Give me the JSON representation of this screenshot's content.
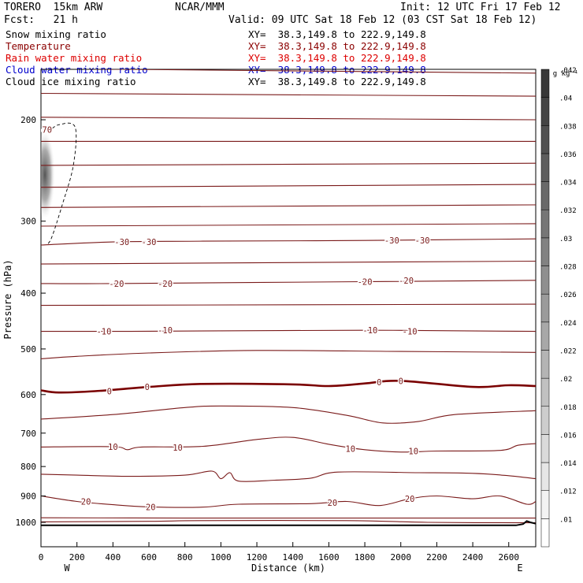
{
  "header": {
    "model": "TORERO  15km ARW",
    "center": "NCAR/MMM",
    "init": "Init: 12 UTC Fri 17 Feb 12",
    "fcst": "Fcst:   21 h",
    "valid": "Valid: 09 UTC Sat 18 Feb 12 (03 CST Sat 18 Feb 12)"
  },
  "fields": [
    {
      "name": "Snow mixing ratio",
      "color": "#000000",
      "xy": "XY=  38.3,149.8 to 222.9,149.8"
    },
    {
      "name": "Temperature",
      "color": "#8b0000",
      "xy": "XY=  38.3,149.8 to 222.9,149.8"
    },
    {
      "name": "Rain water mixing ratio",
      "color": "#dd0000",
      "xy": "XY=  38.3,149.8 to 222.9,149.8"
    },
    {
      "name": "Cloud water mixing ratio",
      "color": "#0000cc",
      "xy": "XY=  38.3,149.8 to 222.9,149.8"
    },
    {
      "name": "Cloud ice mixing ratio",
      "color": "#000000",
      "xy": "XY=  38.3,149.8 to 222.9,149.8"
    }
  ],
  "colors": {
    "isotherm": "#7a1a1a",
    "zero_isotherm": "#7a0000",
    "terrain": "#000000",
    "snow_shading": "#555555"
  },
  "chart_data": {
    "type": "contour",
    "x_axis": {
      "label": "Distance (km)",
      "range": [
        0,
        2750
      ],
      "ticks": [
        0,
        200,
        400,
        600,
        800,
        1000,
        1200,
        1400,
        1600,
        1800,
        2000,
        2200,
        2400,
        2600
      ],
      "left_end_label": "W",
      "right_end_label": "E"
    },
    "y_axis": {
      "label": "Pressure (hPa)",
      "range": [
        1050,
        100
      ],
      "ticks": [
        200,
        300,
        400,
        500,
        600,
        700,
        800,
        900,
        1000
      ],
      "scale": "log"
    },
    "colorbar": {
      "units": "g kg⁻¹",
      "ticks": [
        ".01",
        ".012",
        ".014",
        ".016",
        ".018",
        ".02",
        ".022",
        ".024",
        ".026",
        ".028",
        ".03",
        ".032",
        ".034",
        ".036",
        ".038",
        ".04",
        ".042"
      ]
    },
    "isotherm_labels": [
      {
        "text": "-70",
        "x": 20,
        "p": 208
      },
      {
        "text": "-30",
        "x": 450,
        "p": 326
      },
      {
        "text": "-30",
        "x": 600,
        "p": 326
      },
      {
        "text": "-30",
        "x": 1950,
        "p": 324
      },
      {
        "text": "-30",
        "x": 2120,
        "p": 324
      },
      {
        "text": "-20",
        "x": 420,
        "p": 385
      },
      {
        "text": "-20",
        "x": 690,
        "p": 385
      },
      {
        "text": "-20",
        "x": 1800,
        "p": 382
      },
      {
        "text": "-20",
        "x": 2030,
        "p": 380
      },
      {
        "text": "-10",
        "x": 350,
        "p": 466
      },
      {
        "text": "-10",
        "x": 690,
        "p": 464
      },
      {
        "text": "-10",
        "x": 1830,
        "p": 464
      },
      {
        "text": "-10",
        "x": 2050,
        "p": 466
      },
      {
        "text": "0",
        "x": 380,
        "p": 592
      },
      {
        "text": "0",
        "x": 590,
        "p": 582
      },
      {
        "text": "0",
        "x": 1880,
        "p": 571
      },
      {
        "text": "0",
        "x": 2000,
        "p": 568
      },
      {
        "text": "10",
        "x": 400,
        "p": 739
      },
      {
        "text": "10",
        "x": 760,
        "p": 741
      },
      {
        "text": "10",
        "x": 1720,
        "p": 745
      },
      {
        "text": "10",
        "x": 2070,
        "p": 752
      },
      {
        "text": "20",
        "x": 250,
        "p": 920
      },
      {
        "text": "20",
        "x": 610,
        "p": 940
      },
      {
        "text": "20",
        "x": 1620,
        "p": 925
      },
      {
        "text": "20",
        "x": 2050,
        "p": 910
      }
    ],
    "isotherms": [
      [
        [
          0,
          120
        ],
        [
          2750,
          125
        ]
      ],
      [
        [
          0,
          133
        ],
        [
          2750,
          136
        ]
      ],
      [
        [
          0,
          147
        ],
        [
          2750,
          150
        ]
      ],
      [
        [
          0,
          163
        ],
        [
          2750,
          166
        ]
      ],
      [
        [
          0,
          180
        ],
        [
          2750,
          182
        ]
      ],
      [
        [
          0,
          198
        ],
        [
          2750,
          200
        ]
      ],
      [
        [
          0,
          218
        ],
        [
          2750,
          218
        ]
      ],
      [
        [
          0,
          240
        ],
        [
          2750,
          238
        ]
      ],
      [
        [
          0,
          262
        ],
        [
          2750,
          259
        ]
      ],
      [
        [
          0,
          284
        ],
        [
          2750,
          281
        ]
      ],
      [
        [
          0,
          306
        ],
        [
          2750,
          303
        ]
      ],
      [
        [
          0,
          330
        ],
        [
          400,
          326
        ],
        [
          900,
          325
        ],
        [
          1800,
          324
        ],
        [
          2750,
          322
        ]
      ],
      [
        [
          0,
          356
        ],
        [
          2750,
          352
        ]
      ],
      [
        [
          0,
          385
        ],
        [
          400,
          385
        ],
        [
          1800,
          382
        ],
        [
          2750,
          380
        ]
      ],
      [
        [
          0,
          420
        ],
        [
          2750,
          418
        ]
      ],
      [
        [
          0,
          466
        ],
        [
          500,
          466
        ],
        [
          1800,
          464
        ],
        [
          2750,
          466
        ]
      ],
      [
        [
          0,
          520
        ],
        [
          200,
          515
        ],
        [
          600,
          508
        ],
        [
          1200,
          503
        ],
        [
          2000,
          505
        ],
        [
          2750,
          507
        ]
      ],
      [
        [
          0,
          590
        ],
        [
          100,
          595
        ],
        [
          300,
          592
        ],
        [
          600,
          582
        ],
        [
          900,
          575
        ],
        [
          1400,
          576
        ],
        [
          1600,
          580
        ],
        [
          1800,
          574
        ],
        [
          2000,
          568
        ],
        [
          2400,
          582
        ],
        [
          2600,
          578
        ],
        [
          2750,
          580
        ]
      ],
      [
        [
          0,
          662
        ],
        [
          400,
          650
        ],
        [
          800,
          632
        ],
        [
          1000,
          628
        ],
        [
          1400,
          632
        ],
        [
          1700,
          652
        ],
        [
          1900,
          672
        ],
        [
          2100,
          668
        ],
        [
          2300,
          650
        ],
        [
          2750,
          640
        ]
      ],
      [
        [
          0,
          740
        ],
        [
          400,
          739
        ],
        [
          480,
          748
        ],
        [
          560,
          740
        ],
        [
          900,
          738
        ],
        [
          1200,
          718
        ],
        [
          1400,
          712
        ],
        [
          1600,
          732
        ],
        [
          1800,
          748
        ],
        [
          2000,
          755
        ],
        [
          2200,
          752
        ],
        [
          2550,
          750
        ],
        [
          2650,
          735
        ],
        [
          2750,
          730
        ]
      ],
      [
        [
          0,
          825
        ],
        [
          200,
          828
        ],
        [
          500,
          832
        ],
        [
          800,
          828
        ],
        [
          950,
          815
        ],
        [
          1000,
          840
        ],
        [
          1050,
          820
        ],
        [
          1100,
          848
        ],
        [
          1300,
          845
        ],
        [
          1500,
          838
        ],
        [
          1650,
          818
        ],
        [
          2100,
          820
        ],
        [
          2400,
          822
        ],
        [
          2600,
          830
        ],
        [
          2750,
          840
        ]
      ],
      [
        [
          0,
          900
        ],
        [
          200,
          920
        ],
        [
          400,
          932
        ],
        [
          600,
          940
        ],
        [
          900,
          941
        ],
        [
          1100,
          930
        ],
        [
          1500,
          928
        ],
        [
          1700,
          920
        ],
        [
          1880,
          935
        ],
        [
          2050,
          910
        ],
        [
          2200,
          900
        ],
        [
          2400,
          910
        ],
        [
          2550,
          900
        ],
        [
          2700,
          930
        ],
        [
          2750,
          920
        ]
      ],
      [
        [
          0,
          982
        ],
        [
          800,
          983
        ],
        [
          1600,
          983
        ],
        [
          2750,
          983
        ]
      ],
      [
        [
          0,
          998
        ],
        [
          600,
          996
        ],
        [
          900,
          993
        ],
        [
          1700,
          993
        ],
        [
          2150,
          1000
        ],
        [
          2750,
          1002
        ]
      ]
    ],
    "zero_isotherm_index": 17,
    "terrain": [
      [
        0,
        1012
      ],
      [
        2560,
        1012
      ],
      [
        2640,
        1012
      ],
      [
        2680,
        1007
      ],
      [
        2700,
        995
      ],
      [
        2720,
        1000
      ],
      [
        2750,
        1005
      ]
    ],
    "dashed_contour": [
      [
        40,
        210
      ],
      [
        100,
        204
      ],
      [
        190,
        206
      ],
      [
        180,
        240
      ],
      [
        120,
        280
      ],
      [
        60,
        320
      ],
      [
        30,
        330
      ]
    ]
  }
}
